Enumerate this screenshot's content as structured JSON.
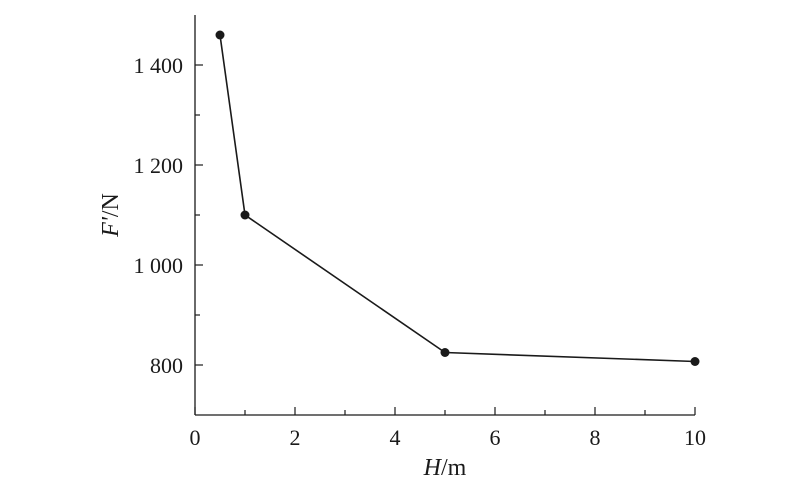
{
  "chart_data": {
    "type": "line",
    "title": "",
    "xlabel": {
      "var": "H",
      "unit": "/m"
    },
    "ylabel": {
      "var": "F'",
      "unit": "/N"
    },
    "xlim": [
      0,
      10
    ],
    "ylim": [
      700,
      1500
    ],
    "x_ticks": [
      0,
      2,
      4,
      6,
      8,
      10
    ],
    "x_tick_labels": [
      "0",
      "2",
      "4",
      "6",
      "8",
      "10"
    ],
    "y_ticks": [
      800,
      1000,
      1200,
      1400
    ],
    "y_tick_labels": [
      "800",
      "1 000",
      "1 200",
      "1 400"
    ],
    "x_minor_ticks": [
      1,
      3,
      5,
      7,
      9
    ],
    "y_minor_ticks": [
      900,
      1100,
      1300
    ],
    "series": [
      {
        "x": [
          0.5,
          1,
          5,
          10
        ],
        "values": [
          1460,
          1100,
          825,
          807
        ]
      }
    ],
    "grid": false,
    "legend": "none",
    "colors": {
      "line": "#1a1a1a",
      "marker": "#1a1a1a"
    }
  }
}
